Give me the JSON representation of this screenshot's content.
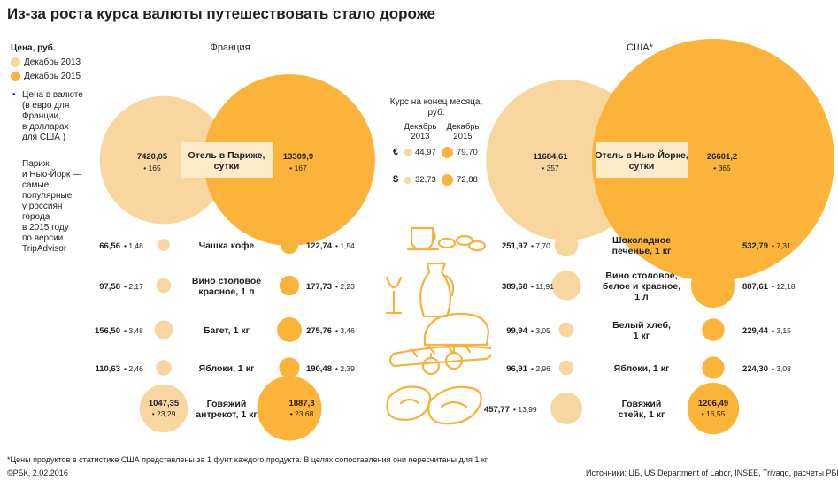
{
  "title": "Из-за роста курса валюты путешествовать стало дороже",
  "colors": {
    "dec2013": "#f8d6a0",
    "dec2015": "#fbb33a",
    "band": "#fdebc9",
    "illustration": "#f7b13c"
  },
  "legend": {
    "heading": "Цена, руб.",
    "dec2013": "Декабрь 2013",
    "dec2015": "Декабрь 2015",
    "currency_note": [
      "Цена в валюте",
      "(в евро для",
      "Франции,",
      "в долларах",
      "для США )"
    ],
    "paris_note": [
      "Париж",
      "и Нью-Йорк —",
      "самые",
      "популярные",
      "у россиян",
      "города",
      "в 2015 году",
      "по версии",
      "TripAdvisor"
    ]
  },
  "rates": {
    "heading": [
      "Курс на конец месяца,",
      "руб."
    ],
    "col1": [
      "Декабрь",
      "2013"
    ],
    "col2": [
      "Декабрь",
      "2015"
    ],
    "rows": [
      {
        "symbol": "€",
        "v2013": "44,97",
        "v2015": "79,70"
      },
      {
        "symbol": "$",
        "v2013": "32,73",
        "v2015": "72,88"
      }
    ]
  },
  "footnote": "*Цены продуктов в статистике США представлены за 1 фунт каждого продукта. В целях сопоставления они пересчитаны для 1 кг",
  "credit": "©РБК, 2.02.2016",
  "sources": "Источники: ЦБ, US Department of Labor, INSEE, Trivago, расчеты РБК",
  "chart_data": [
    {
      "type": "bubble",
      "title": "Франция",
      "unit": "руб.",
      "series": [
        {
          "name": "Декабрь 2013"
        },
        {
          "name": "Декабрь 2015"
        }
      ],
      "items": [
        {
          "label": "Отель в Париже, сутки",
          "rub2013": 7420.05,
          "rub2013_text": "7420,05",
          "cur2013_text": "165",
          "rub2015": 13309.9,
          "rub2015_text": "13309,9",
          "cur2015_text": "167"
        },
        {
          "label": "Чашка кофе",
          "rub2013": 66.56,
          "rub2013_text": "66,56",
          "cur2013_text": "1,48",
          "rub2015": 122.74,
          "rub2015_text": "122,74",
          "cur2015_text": "1,54"
        },
        {
          "label": "Вино столовое красное, 1 л",
          "rub2013": 97.58,
          "rub2013_text": "97,58",
          "cur2013_text": "2,17",
          "rub2015": 177.73,
          "rub2015_text": "177,73",
          "cur2015_text": "2,23"
        },
        {
          "label": "Багет, 1 кг",
          "rub2013": 156.5,
          "rub2013_text": "156,50",
          "cur2013_text": "3,48",
          "rub2015": 275.76,
          "rub2015_text": "275,76",
          "cur2015_text": "3,46"
        },
        {
          "label": "Яблоки, 1 кг",
          "rub2013": 110.63,
          "rub2013_text": "110,63",
          "cur2013_text": "2,46",
          "rub2015": 190.48,
          "rub2015_text": "190,48",
          "cur2015_text": "2,39"
        },
        {
          "label": "Говяжий антрекот, 1 кг",
          "rub2013": 1047.35,
          "rub2013_text": "1047,35",
          "cur2013_text": "23,29",
          "rub2015": 1887.3,
          "rub2015_text": "1887,3",
          "cur2015_text": "23,68"
        }
      ]
    },
    {
      "type": "bubble",
      "title": "США*",
      "unit": "руб.",
      "series": [
        {
          "name": "Декабрь 2013"
        },
        {
          "name": "Декабрь 2015"
        }
      ],
      "items": [
        {
          "label": "Отель в Нью-Йорке, сутки",
          "rub2013": 11684.61,
          "rub2013_text": "11684,61",
          "cur2013_text": "357",
          "rub2015": 26601.2,
          "rub2015_text": "26601,2",
          "cur2015_text": "365"
        },
        {
          "label": "Шоколадное печенье, 1 кг",
          "rub2013": 251.97,
          "rub2013_text": "251,97",
          "cur2013_text": "7,70",
          "rub2015": 532.79,
          "rub2015_text": "532,79",
          "cur2015_text": "7,31"
        },
        {
          "label": "Вино столовое, белое и красное, 1 л",
          "rub2013": 389.68,
          "rub2013_text": "389,68",
          "cur2013_text": "11,91",
          "rub2015": 887.61,
          "rub2015_text": "887,61",
          "cur2015_text": "12,18"
        },
        {
          "label": "Белый хлеб, 1 кг",
          "rub2013": 99.94,
          "rub2013_text": "99,94",
          "cur2013_text": "3,05",
          "rub2015": 229.44,
          "rub2015_text": "229,44",
          "cur2015_text": "3,15"
        },
        {
          "label": "Яблоки, 1 кг",
          "rub2013": 96.91,
          "rub2013_text": "96,91",
          "cur2013_text": "2,96",
          "rub2015": 224.3,
          "rub2015_text": "224,30",
          "cur2015_text": "3,08"
        },
        {
          "label": "Говяжий стейк, 1 кг",
          "rub2013": 457.77,
          "rub2013_text": "457,77",
          "cur2013_text": "13,99",
          "rub2015": 1206.49,
          "rub2015_text": "1206,49",
          "cur2015_text": "16,55"
        }
      ]
    }
  ]
}
